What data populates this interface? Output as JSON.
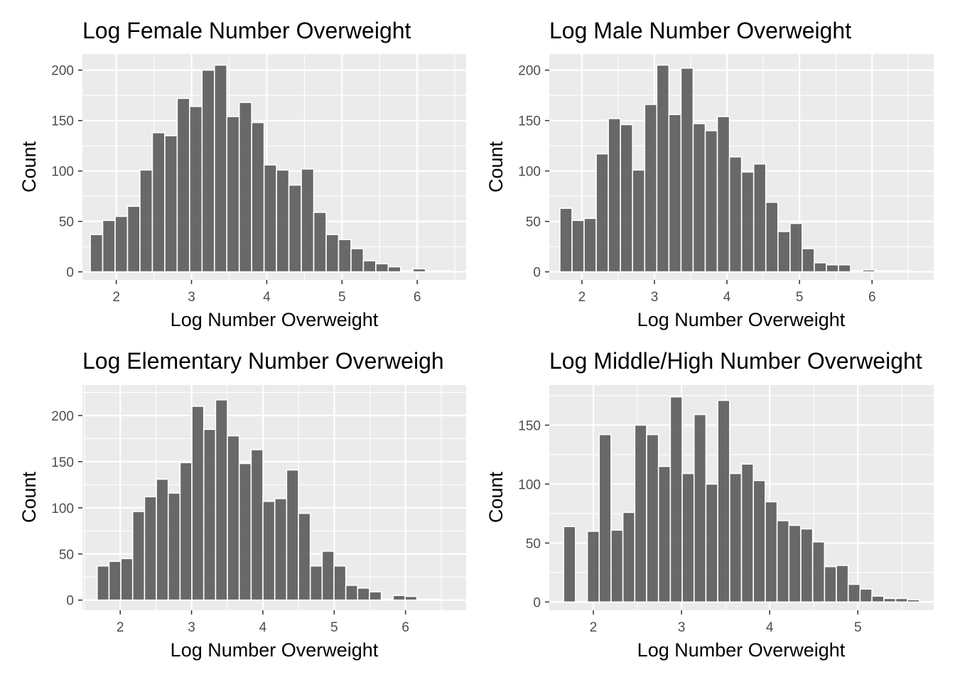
{
  "chart_data": [
    {
      "type": "bar",
      "title": "Log Female Number Overweight",
      "xlabel": "Log Number Overweight",
      "ylabel": "Count",
      "xlim": [
        1.55,
        6.65
      ],
      "ylim": [
        -8,
        216
      ],
      "xticks": [
        2,
        3,
        4,
        5,
        6
      ],
      "yticks": [
        0,
        50,
        100,
        150,
        200
      ],
      "bin_width": 0.165,
      "x": [
        1.737,
        1.902,
        2.067,
        2.232,
        2.397,
        2.562,
        2.727,
        2.892,
        3.057,
        3.222,
        3.387,
        3.552,
        3.717,
        3.882,
        4.047,
        4.212,
        4.377,
        4.542,
        4.707,
        4.872,
        5.037,
        5.202,
        5.367,
        5.532,
        5.697,
        5.862,
        6.027,
        6.192,
        6.357
      ],
      "values": [
        37,
        51,
        55,
        65,
        101,
        138,
        135,
        172,
        164,
        200,
        205,
        154,
        168,
        148,
        106,
        101,
        86,
        102,
        59,
        37,
        32,
        23,
        11,
        8,
        5,
        1,
        3,
        1,
        1
      ]
    },
    {
      "type": "bar",
      "title": "Log Male Number Overweight",
      "xlabel": "Log Number Overweight",
      "ylabel": "Count",
      "xlim": [
        1.55,
        6.85
      ],
      "ylim": [
        -8,
        216
      ],
      "xticks": [
        2,
        3,
        4,
        5,
        6
      ],
      "yticks": [
        0,
        50,
        100,
        150,
        200
      ],
      "bin_width": 0.167,
      "x": [
        1.78,
        1.947,
        2.114,
        2.281,
        2.448,
        2.615,
        2.782,
        2.949,
        3.116,
        3.283,
        3.45,
        3.617,
        3.784,
        3.951,
        4.118,
        4.285,
        4.452,
        4.619,
        4.786,
        4.953,
        5.12,
        5.287,
        5.454,
        5.621,
        5.788,
        5.955,
        6.122,
        6.289,
        6.456
      ],
      "values": [
        63,
        51,
        53,
        117,
        152,
        146,
        101,
        166,
        205,
        156,
        202,
        147,
        140,
        154,
        114,
        99,
        107,
        69,
        40,
        48,
        23,
        9,
        7,
        7,
        1,
        2,
        1,
        1,
        1
      ]
    },
    {
      "type": "bar",
      "title": "Log Elementary Number Overweigh",
      "xlabel": "Log Number Overweight",
      "ylabel": "Count",
      "xlim": [
        1.47,
        6.85
      ],
      "ylim": [
        -11,
        233
      ],
      "xticks": [
        2,
        3,
        4,
        5,
        6
      ],
      "yticks": [
        0,
        50,
        100,
        150,
        200
      ],
      "bin_width": 0.166,
      "x": [
        1.76,
        1.926,
        2.092,
        2.258,
        2.424,
        2.59,
        2.756,
        2.922,
        3.088,
        3.254,
        3.42,
        3.586,
        3.752,
        3.918,
        4.084,
        4.25,
        4.416,
        4.582,
        4.748,
        4.914,
        5.08,
        5.246,
        5.412,
        5.578,
        5.744,
        5.91,
        6.076,
        6.242,
        6.408
      ],
      "values": [
        37,
        42,
        45,
        96,
        112,
        131,
        116,
        149,
        210,
        185,
        217,
        178,
        148,
        163,
        107,
        110,
        141,
        94,
        37,
        53,
        37,
        16,
        13,
        9,
        1,
        5,
        4,
        1,
        1
      ]
    },
    {
      "type": "bar",
      "title": "Log Middle/High Number Overweight",
      "xlabel": "Log Number Overweight",
      "ylabel": "Count",
      "xlim": [
        1.5,
        5.86
      ],
      "ylim": [
        -7,
        184
      ],
      "xticks": [
        2,
        3,
        4,
        5
      ],
      "yticks": [
        0,
        50,
        100,
        150
      ],
      "bin_width": 0.1345,
      "x": [
        1.73,
        1.8645,
        1.999,
        2.1335,
        2.268,
        2.4025,
        2.537,
        2.6715,
        2.806,
        2.9405,
        3.075,
        3.2095,
        3.344,
        3.4785,
        3.613,
        3.7475,
        3.882,
        4.0165,
        4.151,
        4.2855,
        4.42,
        4.5545,
        4.689,
        4.8235,
        4.958,
        5.0925,
        5.227,
        5.3615,
        5.496,
        5.6305
      ],
      "values": [
        64,
        0,
        60,
        142,
        61,
        76,
        150,
        142,
        115,
        174,
        109,
        159,
        100,
        171,
        109,
        117,
        103,
        85,
        69,
        65,
        62,
        51,
        30,
        31,
        15,
        11,
        5,
        3,
        3,
        2
      ]
    }
  ]
}
